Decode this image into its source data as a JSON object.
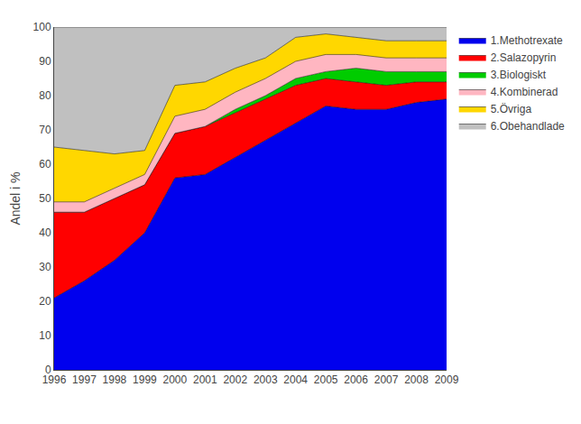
{
  "chart_data": {
    "type": "area",
    "stacked": true,
    "ylabel": "Andel i %",
    "x": [
      1996,
      1997,
      1998,
      1999,
      2000,
      2001,
      2002,
      2003,
      2004,
      2005,
      2006,
      2007,
      2008,
      2009
    ],
    "series": [
      {
        "name": "1.Methotrexate",
        "color": "#0000EE",
        "values": [
          21,
          26,
          32,
          40,
          56,
          57,
          62,
          67,
          72,
          77,
          76,
          76,
          78,
          79
        ]
      },
      {
        "name": "2.Salazopyrin",
        "color": "#FF0000",
        "values": [
          25,
          20,
          18,
          14,
          13,
          14,
          13,
          12,
          11,
          8,
          8,
          7,
          6,
          5
        ]
      },
      {
        "name": "3.Biologiskt",
        "color": "#00CC00",
        "values": [
          0,
          0,
          0,
          0,
          0,
          0,
          1,
          1,
          2,
          2,
          4,
          4,
          3,
          3
        ]
      },
      {
        "name": "4.Kombinerad",
        "color": "#FFB6C1",
        "values": [
          3,
          3,
          3,
          3,
          5,
          5,
          5,
          5,
          5,
          5,
          4,
          4,
          4,
          4
        ]
      },
      {
        "name": "5.Övriga",
        "color": "#FFD700",
        "values": [
          16,
          15,
          10,
          7,
          9,
          8,
          7,
          6,
          7,
          6,
          5,
          5,
          5,
          5
        ]
      },
      {
        "name": "6.Obehandlade",
        "color": "#C0C0C0",
        "values": [
          35,
          36,
          37,
          36,
          17,
          16,
          12,
          9,
          3,
          2,
          3,
          4,
          4,
          4
        ]
      }
    ],
    "xlim": [
      1996,
      2009
    ],
    "xticks": [
      1996,
      1997,
      1998,
      1999,
      2000,
      2001,
      2002,
      2003,
      2004,
      2005,
      2006,
      2007,
      2008,
      2009
    ],
    "ylim": [
      0,
      100
    ],
    "yticks": [
      0,
      10,
      20,
      30,
      40,
      50,
      60,
      70,
      80,
      90,
      100
    ],
    "grid": false,
    "legend": "right"
  }
}
